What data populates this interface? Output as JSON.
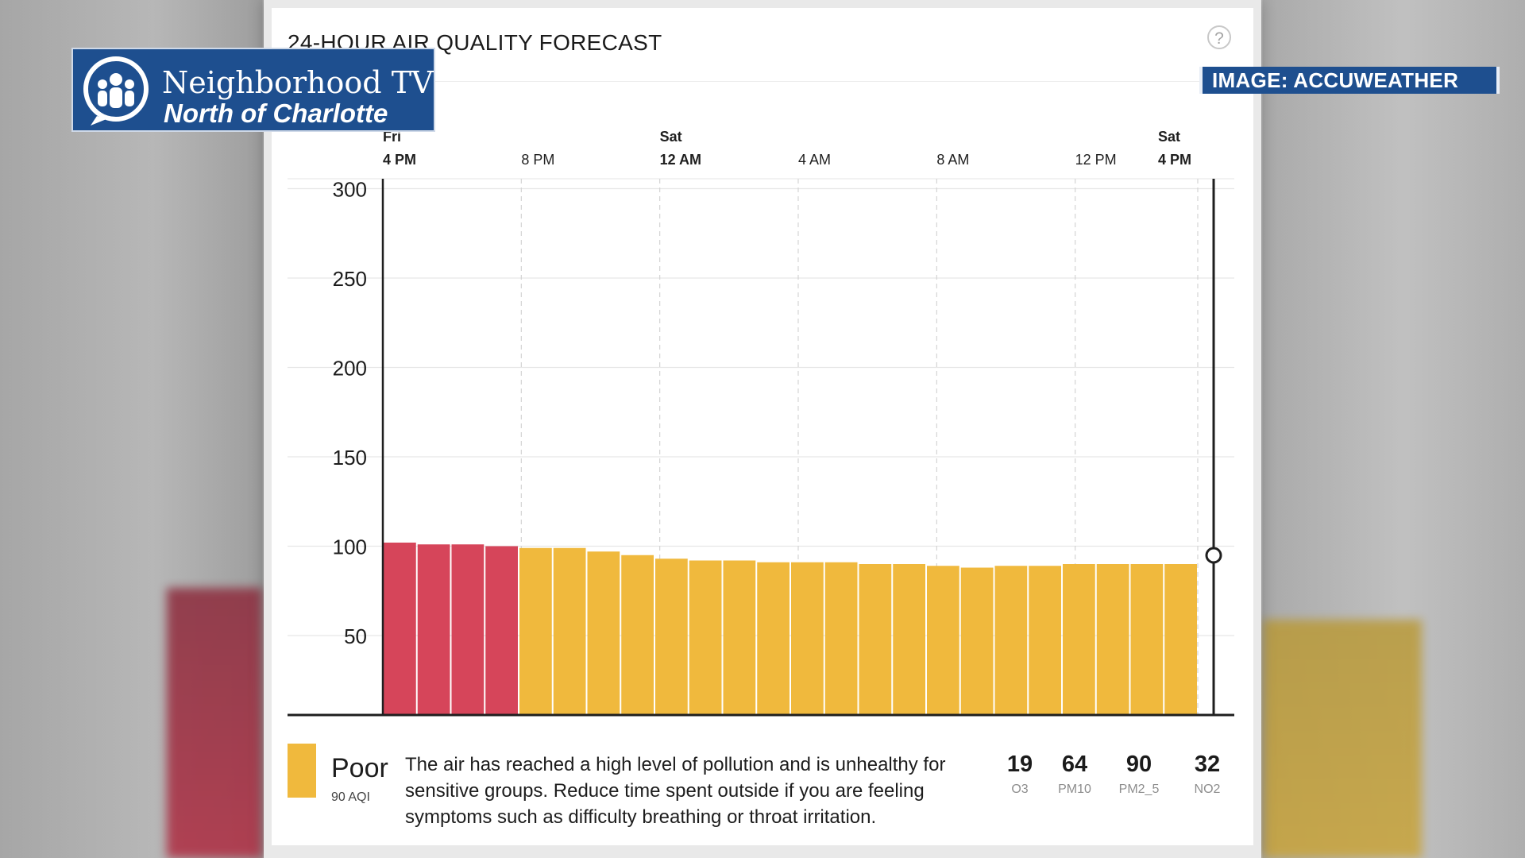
{
  "overlay": {
    "logo_line1": "Neighborhood TV",
    "logo_line2": "North of Charlotte",
    "credit": "IMAGE: ACCUWEATHER"
  },
  "widget": {
    "title": "24-HOUR AIR QUALITY FORECAST",
    "help_label": "?"
  },
  "chart_data": {
    "type": "bar",
    "title": "24-HOUR AIR QUALITY FORECAST",
    "y_ticks": [
      50,
      100,
      150,
      200,
      250,
      300
    ],
    "ylim": [
      0,
      300
    ],
    "grid": true,
    "x_ticks": [
      {
        "day": "Fri",
        "time": "4 PM",
        "hour": 0,
        "bold": true
      },
      {
        "day": "",
        "time": "8 PM",
        "hour": 4,
        "bold": false
      },
      {
        "day": "Sat",
        "time": "12 AM",
        "hour": 8,
        "bold": true
      },
      {
        "day": "",
        "time": "4 AM",
        "hour": 12,
        "bold": false
      },
      {
        "day": "",
        "time": "8 AM",
        "hour": 16,
        "bold": false
      },
      {
        "day": "",
        "time": "12 PM",
        "hour": 20,
        "bold": false
      },
      {
        "day": "Sat",
        "time": "4 PM",
        "hour": 24,
        "bold": true
      }
    ],
    "values": [
      102,
      101,
      101,
      100,
      99,
      99,
      97,
      95,
      93,
      92,
      92,
      91,
      91,
      91,
      90,
      90,
      89,
      88,
      89,
      89,
      90,
      90,
      90,
      90
    ],
    "category_colors": {
      "red": "#d6455a",
      "yellow": "#f0b93d"
    },
    "bar_categories": [
      "red",
      "red",
      "red",
      "red",
      "yellow",
      "yellow",
      "yellow",
      "yellow",
      "yellow",
      "yellow",
      "yellow",
      "yellow",
      "yellow",
      "yellow",
      "yellow",
      "yellow",
      "yellow",
      "yellow",
      "yellow",
      "yellow",
      "yellow",
      "yellow",
      "yellow",
      "yellow"
    ],
    "current_value": 90
  },
  "summary": {
    "category": "Poor",
    "aqi_text": "90 AQI",
    "swatch_color": "#f0b93d",
    "description": "The air has reached a high level of pollution and is unhealthy for sensitive groups. Reduce time spent outside if you are feeling symptoms such as difficulty breathing or throat irritation.",
    "pollutants": [
      {
        "value": "19",
        "name": "O3"
      },
      {
        "value": "64",
        "name": "PM10"
      },
      {
        "value": "90",
        "name": "PM2_5"
      },
      {
        "value": "32",
        "name": "NO2"
      }
    ]
  }
}
